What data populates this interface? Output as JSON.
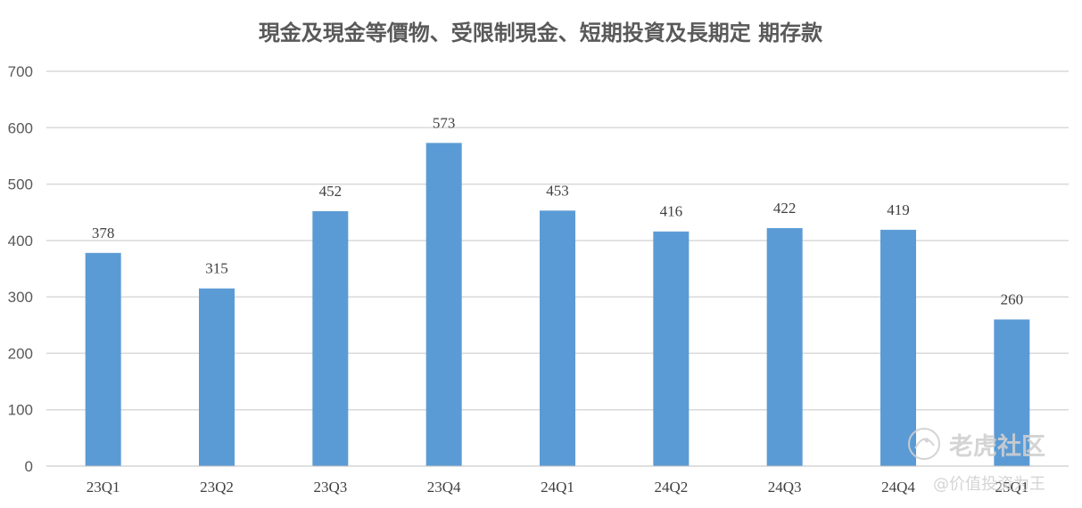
{
  "chart_data": {
    "type": "bar",
    "title": "現金及現金等價物、受限制現金、短期投資及長期定 期存款",
    "xlabel": "",
    "ylabel": "",
    "categories": [
      "23Q1",
      "23Q2",
      "23Q3",
      "23Q4",
      "24Q1",
      "24Q2",
      "24Q3",
      "24Q4",
      "25Q1"
    ],
    "values": [
      378,
      315,
      452,
      573,
      453,
      416,
      422,
      419,
      260
    ],
    "ylim": [
      0,
      700
    ],
    "yticks": [
      0,
      100,
      200,
      300,
      400,
      500,
      600,
      700
    ],
    "data_labels": true,
    "grid": true,
    "legend": "none",
    "bar_color": "#5b9bd5",
    "grid_color": "#d9d9d9"
  },
  "watermark": {
    "brand": "老虎社区",
    "author": "@价值投资为王"
  }
}
